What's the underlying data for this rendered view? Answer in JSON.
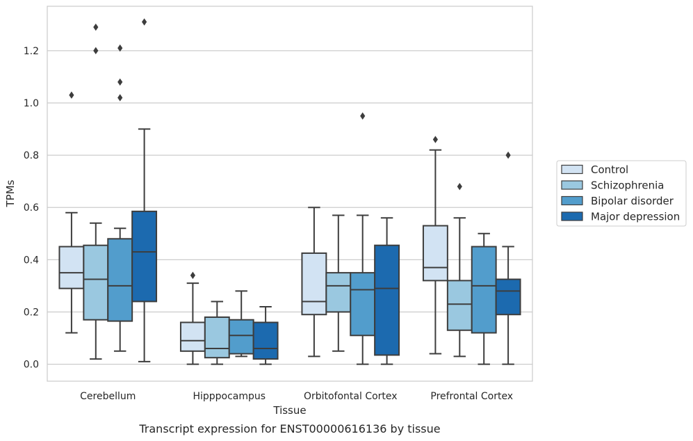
{
  "caption": "Transcript expression for ENST00000616136 by tissue",
  "chart_data": {
    "type": "boxplot",
    "xlabel": "Tissue",
    "ylabel": "TPMs",
    "ylim": [
      -0.065,
      1.37
    ],
    "yticks": [
      "0.0",
      "0.2",
      "0.4",
      "0.6",
      "0.8",
      "1.0",
      "1.2"
    ],
    "grid": "horizontal",
    "legend_position": "right",
    "categories": [
      "Cerebellum",
      "Hipppocampus",
      "Orbitofontal Cortex",
      "Prefrontal Cortex"
    ],
    "series": [
      {
        "name": "Control",
        "color": "#d2e3f3",
        "boxes": [
          {
            "whislo": 0.12,
            "q1": 0.29,
            "med": 0.35,
            "q3": 0.45,
            "whishi": 0.58,
            "fliers": [
              1.03
            ]
          },
          {
            "whislo": 0.0,
            "q1": 0.05,
            "med": 0.09,
            "q3": 0.16,
            "whishi": 0.31,
            "fliers": [
              0.34
            ]
          },
          {
            "whislo": 0.03,
            "q1": 0.19,
            "med": 0.24,
            "q3": 0.425,
            "whishi": 0.6,
            "fliers": []
          },
          {
            "whislo": 0.04,
            "q1": 0.32,
            "med": 0.37,
            "q3": 0.53,
            "whishi": 0.82,
            "fliers": [
              0.86
            ]
          }
        ]
      },
      {
        "name": "Schizophrenia",
        "color": "#9ac8e0",
        "boxes": [
          {
            "whislo": 0.02,
            "q1": 0.17,
            "med": 0.325,
            "q3": 0.455,
            "whishi": 0.54,
            "fliers": [
              1.2,
              1.29
            ]
          },
          {
            "whislo": 0.0,
            "q1": 0.025,
            "med": 0.06,
            "q3": 0.18,
            "whishi": 0.24,
            "fliers": []
          },
          {
            "whislo": 0.05,
            "q1": 0.2,
            "med": 0.3,
            "q3": 0.35,
            "whishi": 0.57,
            "fliers": []
          },
          {
            "whislo": 0.03,
            "q1": 0.13,
            "med": 0.23,
            "q3": 0.32,
            "whishi": 0.56,
            "fliers": [
              0.68
            ]
          }
        ]
      },
      {
        "name": "Bipolar disorder",
        "color": "#529dcc",
        "boxes": [
          {
            "whislo": 0.05,
            "q1": 0.165,
            "med": 0.3,
            "q3": 0.48,
            "whishi": 0.52,
            "fliers": [
              1.02,
              1.08,
              1.21
            ]
          },
          {
            "whislo": 0.03,
            "q1": 0.04,
            "med": 0.11,
            "q3": 0.17,
            "whishi": 0.28,
            "fliers": []
          },
          {
            "whislo": 0.0,
            "q1": 0.11,
            "med": 0.285,
            "q3": 0.35,
            "whishi": 0.57,
            "fliers": [
              0.95
            ]
          },
          {
            "whislo": 0.0,
            "q1": 0.12,
            "med": 0.3,
            "q3": 0.45,
            "whishi": 0.5,
            "fliers": []
          }
        ]
      },
      {
        "name": "Major depression",
        "color": "#1c6aaf",
        "boxes": [
          {
            "whislo": 0.01,
            "q1": 0.24,
            "med": 0.43,
            "q3": 0.585,
            "whishi": 0.9,
            "fliers": [
              1.31
            ]
          },
          {
            "whislo": 0.0,
            "q1": 0.02,
            "med": 0.06,
            "q3": 0.16,
            "whishi": 0.22,
            "fliers": []
          },
          {
            "whislo": 0.0,
            "q1": 0.035,
            "med": 0.29,
            "q3": 0.455,
            "whishi": 0.56,
            "fliers": []
          },
          {
            "whislo": 0.0,
            "q1": 0.19,
            "med": 0.28,
            "q3": 0.325,
            "whishi": 0.45,
            "fliers": [
              0.8
            ]
          }
        ]
      }
    ]
  }
}
